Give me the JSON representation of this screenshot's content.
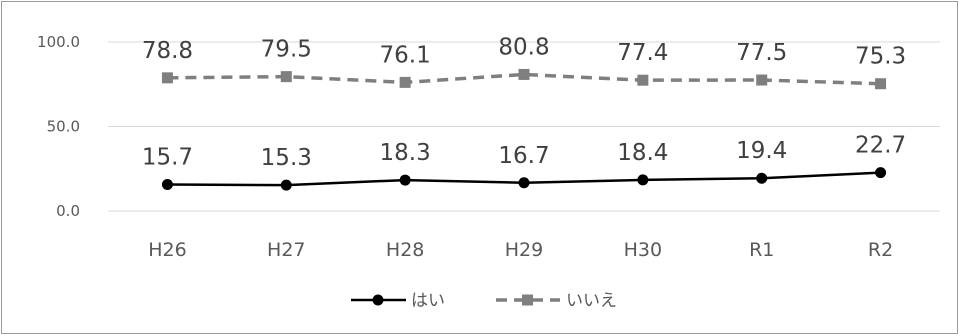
{
  "chart_data": {
    "type": "line",
    "categories": [
      "H26",
      "H27",
      "H28",
      "H29",
      "H30",
      "R1",
      "R2"
    ],
    "series": [
      {
        "name": "はい",
        "values": [
          15.7,
          15.3,
          18.3,
          16.7,
          18.4,
          19.4,
          22.7
        ],
        "color": "#000000",
        "style": "solid",
        "marker": "circle"
      },
      {
        "name": "いいえ",
        "values": [
          78.8,
          79.5,
          76.1,
          80.8,
          77.4,
          77.5,
          75.3
        ],
        "color": "#7f7f7f",
        "style": "dashed",
        "marker": "square"
      }
    ],
    "yticks": [
      "0.0",
      "50.0",
      "100.0"
    ],
    "ylim": [
      0,
      100
    ],
    "grid": true,
    "legend": "bottom",
    "title": "",
    "xlabel": "",
    "ylabel": ""
  }
}
